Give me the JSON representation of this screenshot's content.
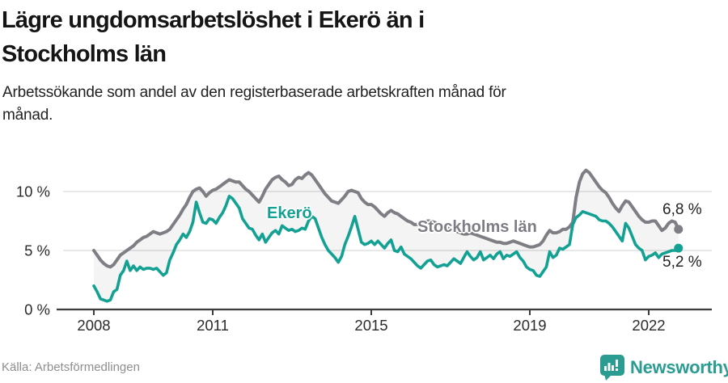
{
  "title": {
    "line1": "Lägre ungdomsarbetslöshet i Ekerö än i",
    "line2": "Stockholms län"
  },
  "subtitle": {
    "line1": "Arbetssökande som andel av den registerbaserade arbetskraften månad för",
    "line2": "månad."
  },
  "source": "Källa: Arbetsförmedlingen",
  "brand": {
    "name": "Newsworthy",
    "icon": "bar-chart-badge-icon",
    "color": "#2b9c92"
  },
  "colors": {
    "ekero_line": "#13a193",
    "stockholm_line": "#7e7e84",
    "band_fill": "rgba(0,0,0,0.045)",
    "grid": "#e0e0e0",
    "axis": "#3d3d3d",
    "tick_text": "#2b2b2b"
  },
  "chart_data": {
    "type": "line",
    "x_unit": "month",
    "x_start": "2008-01",
    "x_end": "2022-10",
    "ylim": [
      0,
      12.5
    ],
    "grid": "horizontal",
    "yticks": [
      {
        "value": 0,
        "label": "0 %"
      },
      {
        "value": 5,
        "label": "5 %"
      },
      {
        "value": 10,
        "label": "10 %"
      }
    ],
    "xticks": [
      {
        "year": 2008,
        "label": "2008"
      },
      {
        "year": 2011,
        "label": "2011"
      },
      {
        "year": 2015,
        "label": "2015"
      },
      {
        "year": 2019,
        "label": "2019"
      },
      {
        "year": 2022,
        "label": "2022"
      }
    ],
    "series": [
      {
        "name": "Stockholms län",
        "color": "#7e7e84",
        "end_label": "6,8 %",
        "end_value": 6.8,
        "values": [
          5.0,
          4.6,
          4.2,
          3.9,
          3.7,
          3.6,
          3.8,
          4.2,
          4.6,
          4.8,
          5.0,
          5.2,
          5.4,
          5.7,
          5.9,
          6.1,
          6.2,
          6.4,
          6.6,
          6.5,
          6.4,
          6.5,
          6.6,
          6.8,
          7.2,
          7.6,
          8.0,
          8.5,
          8.9,
          9.5,
          10.0,
          10.2,
          10.3,
          10.0,
          9.6,
          9.9,
          10.1,
          10.2,
          10.4,
          10.6,
          10.8,
          11.0,
          10.9,
          10.8,
          10.8,
          10.5,
          10.2,
          10.0,
          9.7,
          9.4,
          9.1,
          9.6,
          10.2,
          10.6,
          11.0,
          11.2,
          11.3,
          11.0,
          10.8,
          10.5,
          10.6,
          11.0,
          11.2,
          11.1,
          11.4,
          11.6,
          11.4,
          11.0,
          10.6,
          10.2,
          9.8,
          9.5,
          9.2,
          9.1,
          9.0,
          9.3,
          9.6,
          10.0,
          10.1,
          10.0,
          9.9,
          9.4,
          9.1,
          8.9,
          8.9,
          8.7,
          8.4,
          8.1,
          7.9,
          8.2,
          8.4,
          8.2,
          8.1,
          7.9,
          7.7,
          7.5,
          7.4,
          7.2,
          7.2,
          7.3,
          7.4,
          7.5,
          7.5,
          7.4,
          7.3,
          7.1,
          7.0,
          6.9,
          6.8,
          6.7,
          6.6,
          6.5,
          6.4,
          6.4,
          6.5,
          6.4,
          6.3,
          6.2,
          6.1,
          6.0,
          5.9,
          5.8,
          5.7,
          5.7,
          5.6,
          5.6,
          5.7,
          5.8,
          5.7,
          5.6,
          5.5,
          5.4,
          5.3,
          5.3,
          5.4,
          5.5,
          5.8,
          6.3,
          6.7,
          6.5,
          6.5,
          6.6,
          6.8,
          6.8,
          7.0,
          7.4,
          9.5,
          10.8,
          11.5,
          11.8,
          11.6,
          11.2,
          10.8,
          10.4,
          10.1,
          9.9,
          9.5,
          9.0,
          8.6,
          8.3,
          8.8,
          9.2,
          9.1,
          8.7,
          8.3,
          7.9,
          7.6,
          7.4,
          7.4,
          7.5,
          7.5,
          7.1,
          6.7,
          6.9,
          7.3,
          7.5,
          7.4,
          6.8
        ]
      },
      {
        "name": "Ekerö",
        "color": "#13a193",
        "end_label": "5,2 %",
        "end_value": 5.2,
        "values": [
          2.0,
          1.5,
          0.9,
          0.8,
          0.7,
          0.8,
          1.5,
          1.7,
          2.9,
          3.3,
          4.1,
          3.3,
          3.7,
          3.3,
          3.6,
          3.4,
          3.5,
          3.5,
          3.4,
          3.5,
          3.2,
          2.9,
          3.1,
          4.2,
          4.8,
          5.5,
          5.9,
          6.4,
          6.1,
          6.6,
          7.4,
          9.1,
          8.2,
          7.4,
          7.3,
          7.7,
          7.6,
          7.3,
          7.8,
          8.2,
          8.8,
          9.6,
          9.4,
          9.0,
          8.6,
          7.7,
          7.3,
          6.9,
          6.8,
          6.3,
          5.9,
          6.4,
          5.7,
          6.1,
          6.5,
          6.7,
          6.4,
          7.1,
          6.9,
          6.7,
          6.8,
          6.6,
          6.7,
          6.9,
          6.8,
          7.5,
          7.9,
          7.7,
          6.9,
          6.1,
          5.5,
          5.0,
          4.7,
          4.4,
          4.0,
          4.5,
          5.5,
          6.2,
          7.0,
          7.9,
          6.8,
          5.7,
          5.5,
          5.6,
          5.8,
          5.5,
          5.8,
          5.5,
          5.2,
          5.6,
          5.9,
          5.0,
          4.9,
          5.3,
          4.7,
          4.5,
          4.3,
          4.0,
          3.7,
          3.5,
          3.8,
          4.1,
          4.2,
          3.8,
          3.6,
          3.7,
          3.8,
          3.7,
          4.0,
          4.3,
          4.1,
          3.9,
          4.4,
          4.9,
          4.5,
          4.2,
          4.4,
          4.9,
          4.2,
          4.4,
          4.6,
          4.3,
          4.7,
          4.9,
          4.3,
          4.6,
          4.5,
          4.7,
          4.9,
          4.4,
          4.1,
          3.6,
          3.4,
          3.3,
          2.9,
          2.8,
          3.2,
          3.6,
          4.9,
          4.4,
          4.6,
          5.2,
          5.1,
          5.3,
          5.5,
          7.2,
          7.8,
          8.0,
          8.3,
          8.2,
          8.1,
          8.0,
          7.9,
          7.6,
          7.5,
          7.5,
          7.3,
          7.0,
          6.6,
          6.2,
          5.8,
          7.3,
          6.9,
          6.2,
          5.5,
          5.2,
          5.0,
          4.2,
          4.5,
          4.6,
          4.8,
          4.4,
          4.7,
          4.8,
          4.9,
          5.0,
          5.0,
          5.2
        ]
      }
    ]
  }
}
